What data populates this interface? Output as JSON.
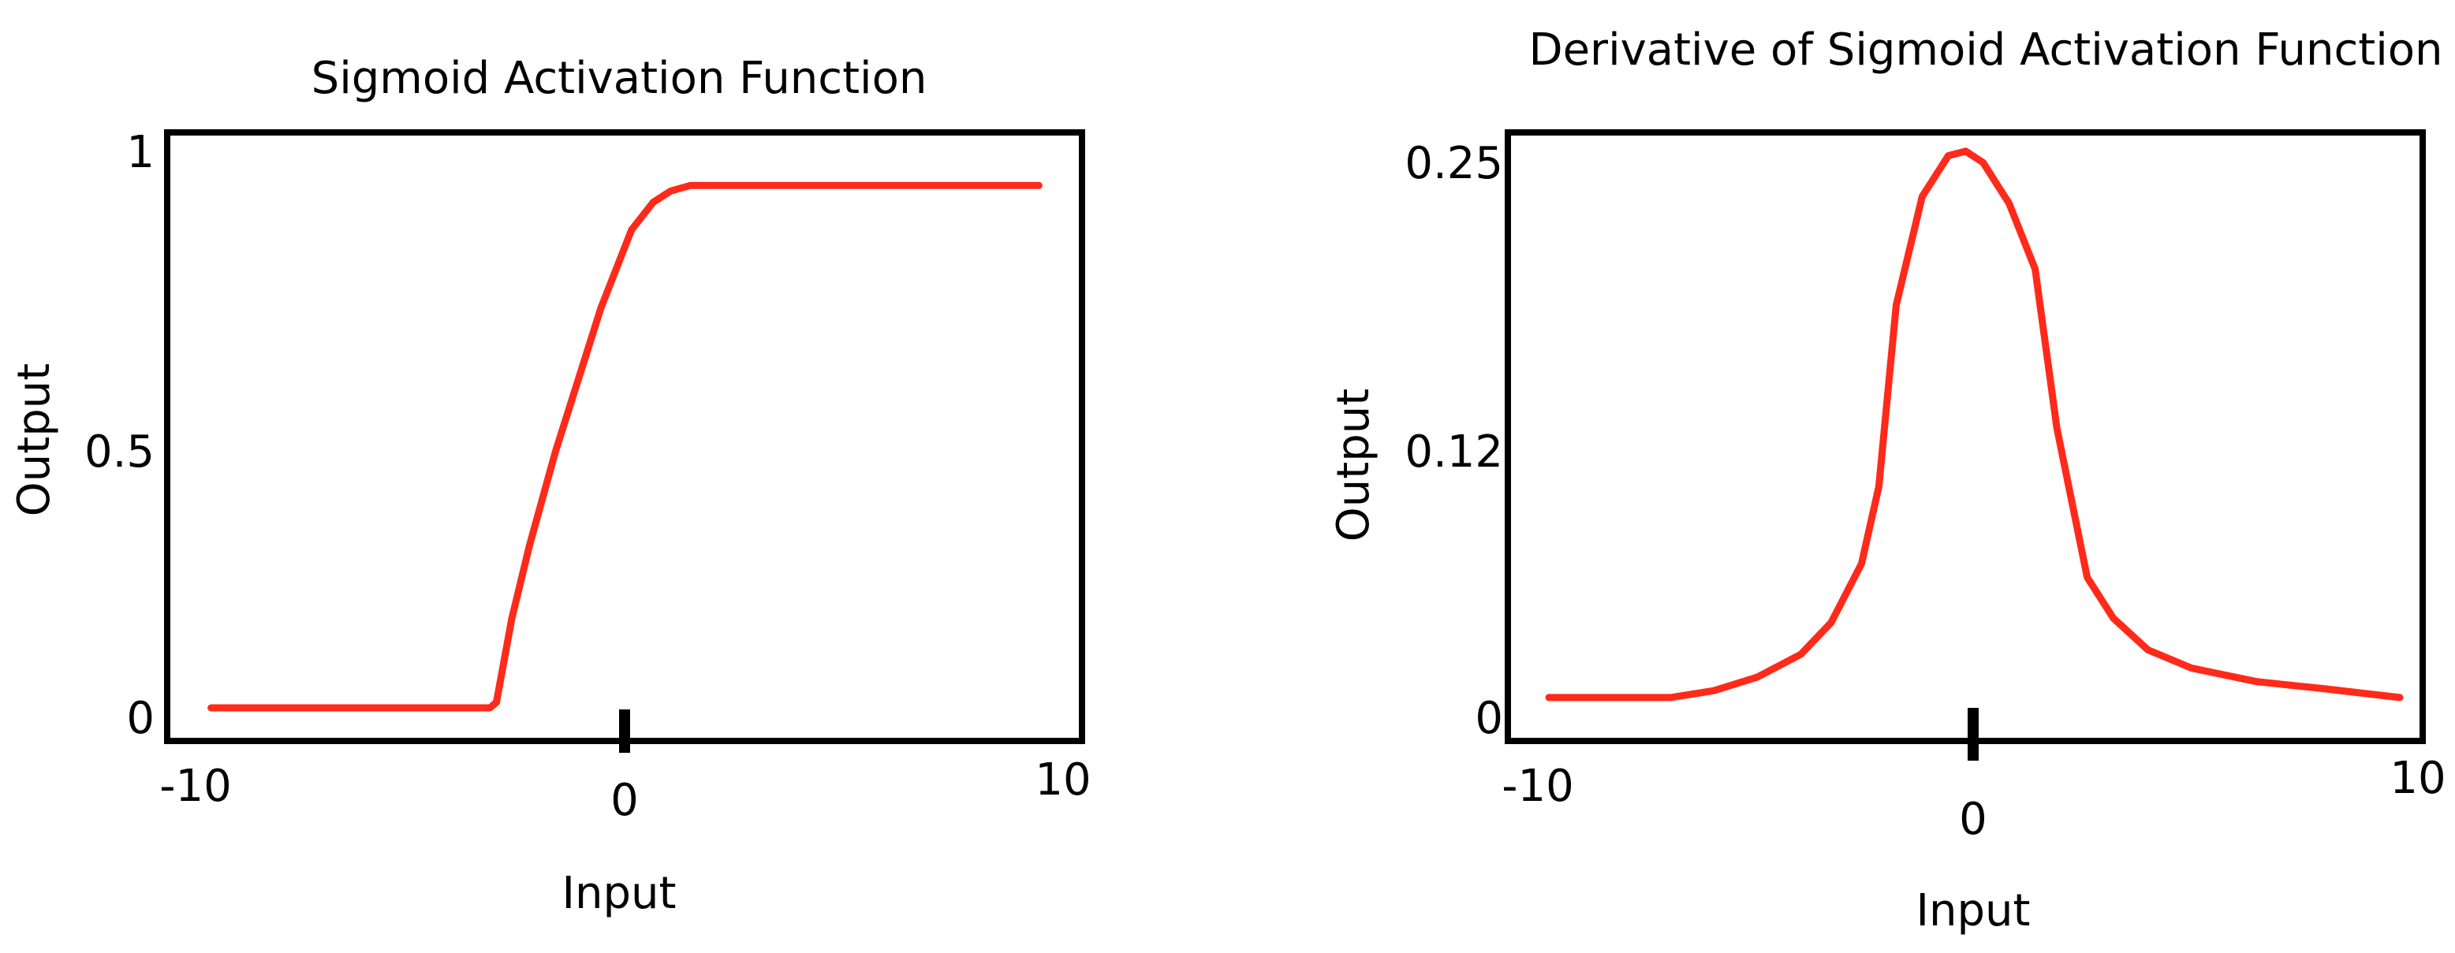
{
  "chart_data": [
    {
      "type": "line",
      "title": "Sigmoid Activation Function",
      "xlabel": "Input",
      "ylabel": "Output",
      "xlim": [
        -10,
        10
      ],
      "ylim": [
        0,
        1
      ],
      "x_ticks": [
        "-10",
        "0",
        "10"
      ],
      "y_ticks": [
        "0",
        "0.5",
        "1"
      ],
      "grid": false,
      "line_color": "#ff2a1a",
      "series": [
        {
          "x": [
            -9.5,
            -6,
            -3.5,
            -3.1,
            -2.95,
            -2.6,
            -2.2,
            -1.6,
            -0.55,
            0.15,
            0.65,
            1.05,
            1.5,
            9.5
          ],
          "y": [
            0.01,
            0.01,
            0.01,
            0.01,
            0.02,
            0.17,
            0.3,
            0.47,
            0.73,
            0.87,
            0.92,
            0.94,
            0.95,
            0.95
          ]
        }
      ]
    },
    {
      "type": "line",
      "title": "Derivative of Sigmoid Activation Function",
      "xlabel": "Input",
      "ylabel": "Output",
      "xlim": [
        -10,
        10
      ],
      "ylim": [
        0,
        0.25
      ],
      "x_ticks": [
        "-10",
        "0",
        "10"
      ],
      "y_ticks": [
        "0",
        "0.12",
        "0.25"
      ],
      "grid": false,
      "line_color": "#ff2a1a",
      "series": [
        {
          "x": [
            -9.8,
            -7.0,
            -6.0,
            -5.0,
            -4.0,
            -3.3,
            -2.6,
            -2.2,
            -1.8,
            -1.2,
            -0.6,
            -0.2,
            0.2,
            0.8,
            1.4,
            1.9,
            2.6,
            3.2,
            4.0,
            5.0,
            6.5,
            8.0,
            9.8
          ],
          "y": [
            0.007,
            0.007,
            0.01,
            0.016,
            0.026,
            0.04,
            0.066,
            0.1,
            0.18,
            0.228,
            0.246,
            0.248,
            0.243,
            0.225,
            0.196,
            0.126,
            0.06,
            0.042,
            0.028,
            0.02,
            0.014,
            0.011,
            0.007
          ]
        }
      ]
    }
  ]
}
